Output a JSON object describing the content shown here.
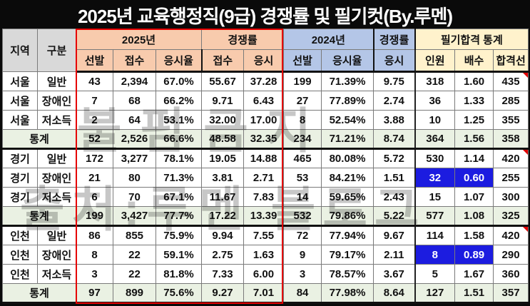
{
  "title": "2025년 교육행정직(9급) 경쟁률 및 필기컷(By.루멘)",
  "watermark": {
    "line1": "불펌금지",
    "line2": "출처:루멘 블로그"
  },
  "colors": {
    "group_2025_bg": "#F8CBAD",
    "group_2024_bg": "#B4C6E7",
    "group_stat_bg": "#FFF2CC",
    "corner_header_bg": "#D9D9D9",
    "stats_row_bg": "#EAF1E3",
    "red_text": "#F00000",
    "blue_text": "#1F1FE0",
    "highlight_cell_bg": "#1C1CE0",
    "red_box_border": "#E60000"
  },
  "header": {
    "region_label": "지역",
    "category_label": "구분",
    "groups": [
      {
        "label": "2025년",
        "span": 3,
        "style": "g2025"
      },
      {
        "label": "경쟁률",
        "span": 2,
        "style": "g2025"
      },
      {
        "label": "2024년",
        "span": 2,
        "style": "g2024"
      },
      {
        "label": "경쟁률",
        "span": 1,
        "style": "g2024"
      },
      {
        "label": "필기합격 통계",
        "span": 3,
        "style": "gstat"
      }
    ],
    "cols": [
      "선발",
      "접수",
      "응시율",
      "접수",
      "응시",
      "선발",
      "응시율",
      "응시",
      "인원",
      "배수",
      "합격선"
    ]
  },
  "stats_label": "통계",
  "rows": [
    {
      "region": "서울",
      "category": "일반",
      "stats": false,
      "cells": [
        {
          "v": "43",
          "cls": "red"
        },
        {
          "v": "2,394"
        },
        {
          "v": "67.0%"
        },
        {
          "v": "55.67"
        },
        {
          "v": "37.28"
        },
        {
          "v": "199",
          "cls": "red"
        },
        {
          "v": "71.39%"
        },
        {
          "v": "9.75"
        },
        {
          "v": "318"
        },
        {
          "v": "1.60"
        },
        {
          "v": "435",
          "note": true
        }
      ]
    },
    {
      "region": "서울",
      "category": "장애인",
      "stats": false,
      "cells": [
        {
          "v": "7"
        },
        {
          "v": "68"
        },
        {
          "v": "66.2%"
        },
        {
          "v": "9.71"
        },
        {
          "v": "6.43"
        },
        {
          "v": "27"
        },
        {
          "v": "77.89%"
        },
        {
          "v": "2.74"
        },
        {
          "v": "36"
        },
        {
          "v": "1.33"
        },
        {
          "v": "285",
          "cls": "blue"
        }
      ]
    },
    {
      "region": "서울",
      "category": "저소득",
      "stats": false,
      "cells": [
        {
          "v": "2"
        },
        {
          "v": "64"
        },
        {
          "v": "53.1%"
        },
        {
          "v": "32.00"
        },
        {
          "v": "17.00"
        },
        {
          "v": "8"
        },
        {
          "v": "52.54%"
        },
        {
          "v": "3.88"
        },
        {
          "v": "10"
        },
        {
          "v": "1.25"
        },
        {
          "v": "355"
        }
      ]
    },
    {
      "region": "통계",
      "category": "",
      "stats": true,
      "cells": [
        {
          "v": "52"
        },
        {
          "v": "2,526"
        },
        {
          "v": "66.6%"
        },
        {
          "v": "48.58"
        },
        {
          "v": "32.35"
        },
        {
          "v": "234"
        },
        {
          "v": "71.21%"
        },
        {
          "v": "8.74"
        },
        {
          "v": "364"
        },
        {
          "v": "1.56"
        },
        {
          "v": "358"
        }
      ]
    },
    {
      "region": "경기",
      "category": "일반",
      "stats": false,
      "cells": [
        {
          "v": "172",
          "cls": "blue"
        },
        {
          "v": "3,277"
        },
        {
          "v": "78.1%"
        },
        {
          "v": "19.05"
        },
        {
          "v": "14.88"
        },
        {
          "v": "465",
          "cls": "blue"
        },
        {
          "v": "80.08%"
        },
        {
          "v": "5.72"
        },
        {
          "v": "530"
        },
        {
          "v": "1.14"
        },
        {
          "v": "420",
          "note": true
        }
      ]
    },
    {
      "region": "경기",
      "category": "장애인",
      "stats": false,
      "cells": [
        {
          "v": "21"
        },
        {
          "v": "80"
        },
        {
          "v": "71.3%"
        },
        {
          "v": "3.81"
        },
        {
          "v": "2.71"
        },
        {
          "v": "53"
        },
        {
          "v": "84.21%"
        },
        {
          "v": "1.51"
        },
        {
          "v": "32",
          "cls": "bluebg"
        },
        {
          "v": "0.60",
          "cls": "bluebg"
        },
        {
          "v": "255",
          "cls": "blue"
        }
      ]
    },
    {
      "region": "경기",
      "category": "저소득",
      "stats": false,
      "cells": [
        {
          "v": "6"
        },
        {
          "v": "70"
        },
        {
          "v": "67.1%"
        },
        {
          "v": "11.67"
        },
        {
          "v": "7.83"
        },
        {
          "v": "14"
        },
        {
          "v": "59.65%"
        },
        {
          "v": "2.43"
        },
        {
          "v": "15"
        },
        {
          "v": "1.07"
        },
        {
          "v": "300"
        }
      ]
    },
    {
      "region": "통계",
      "category": "",
      "stats": true,
      "cells": [
        {
          "v": "199"
        },
        {
          "v": "3,427"
        },
        {
          "v": "77.7%"
        },
        {
          "v": "17.22"
        },
        {
          "v": "13.39"
        },
        {
          "v": "532"
        },
        {
          "v": "79.86%"
        },
        {
          "v": "5.22"
        },
        {
          "v": "577"
        },
        {
          "v": "1.08"
        },
        {
          "v": "325"
        }
      ]
    },
    {
      "region": "인천",
      "category": "일반",
      "stats": false,
      "cells": [
        {
          "v": "86",
          "cls": "blue"
        },
        {
          "v": "855"
        },
        {
          "v": "75.9%"
        },
        {
          "v": "9.94"
        },
        {
          "v": "7.55"
        },
        {
          "v": "72",
          "cls": "blue"
        },
        {
          "v": "77.94%"
        },
        {
          "v": "9.67"
        },
        {
          "v": "114"
        },
        {
          "v": "1.58"
        },
        {
          "v": "420",
          "note": true
        }
      ]
    },
    {
      "region": "인천",
      "category": "장애인",
      "stats": false,
      "cells": [
        {
          "v": "8"
        },
        {
          "v": "22"
        },
        {
          "v": "59.1%"
        },
        {
          "v": "2.75"
        },
        {
          "v": "1.63"
        },
        {
          "v": "9"
        },
        {
          "v": "79.17%"
        },
        {
          "v": "2.11"
        },
        {
          "v": "8",
          "cls": "bluebg"
        },
        {
          "v": "0.89",
          "cls": "bluebg"
        },
        {
          "v": "290",
          "cls": "blue"
        }
      ]
    },
    {
      "region": "인천",
      "category": "저소득",
      "stats": false,
      "cells": [
        {
          "v": "3"
        },
        {
          "v": "22"
        },
        {
          "v": "81.8%"
        },
        {
          "v": "7.33"
        },
        {
          "v": "6.00"
        },
        {
          "v": "3"
        },
        {
          "v": "78.57%"
        },
        {
          "v": "3.67"
        },
        {
          "v": "5"
        },
        {
          "v": "1.67"
        },
        {
          "v": "360"
        }
      ]
    },
    {
      "region": "통계",
      "category": "",
      "stats": true,
      "cells": [
        {
          "v": "97"
        },
        {
          "v": "899"
        },
        {
          "v": "75.6%"
        },
        {
          "v": "9.27"
        },
        {
          "v": "7.01"
        },
        {
          "v": "84"
        },
        {
          "v": "77.98%"
        },
        {
          "v": "8.64"
        },
        {
          "v": "127"
        },
        {
          "v": "1.51"
        },
        {
          "v": "357"
        }
      ]
    }
  ]
}
